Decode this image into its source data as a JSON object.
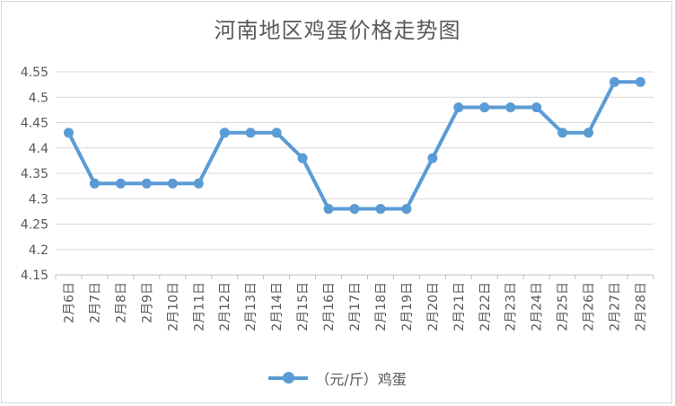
{
  "chart_data": {
    "type": "line",
    "title": "河南地区鸡蛋价格走势图",
    "categories": [
      "2月6日",
      "2月7日",
      "2月8日",
      "2月9日",
      "2月10日",
      "2月11日",
      "2月12日",
      "2月13日",
      "2月14日",
      "2月15日",
      "2月16日",
      "2月17日",
      "2月18日",
      "2月19日",
      "2月20日",
      "2月21日",
      "2月22日",
      "2月23日",
      "2月24日",
      "2月25日",
      "2月26日",
      "2月27日",
      "2月28日"
    ],
    "series": [
      {
        "name": "（元/斤）鸡蛋",
        "values": [
          4.43,
          4.33,
          4.33,
          4.33,
          4.33,
          4.33,
          4.43,
          4.43,
          4.43,
          4.38,
          4.28,
          4.28,
          4.28,
          4.28,
          4.38,
          4.48,
          4.48,
          4.48,
          4.48,
          4.43,
          4.43,
          4.53,
          4.53
        ]
      }
    ],
    "ylim": [
      4.15,
      4.55
    ],
    "yticks": [
      "4.15",
      "4.2",
      "4.25",
      "4.3",
      "4.35",
      "4.4",
      "4.45",
      "4.5",
      "4.55"
    ],
    "grid": true,
    "legend": "bottom",
    "line_color": "#5b9bd5"
  }
}
